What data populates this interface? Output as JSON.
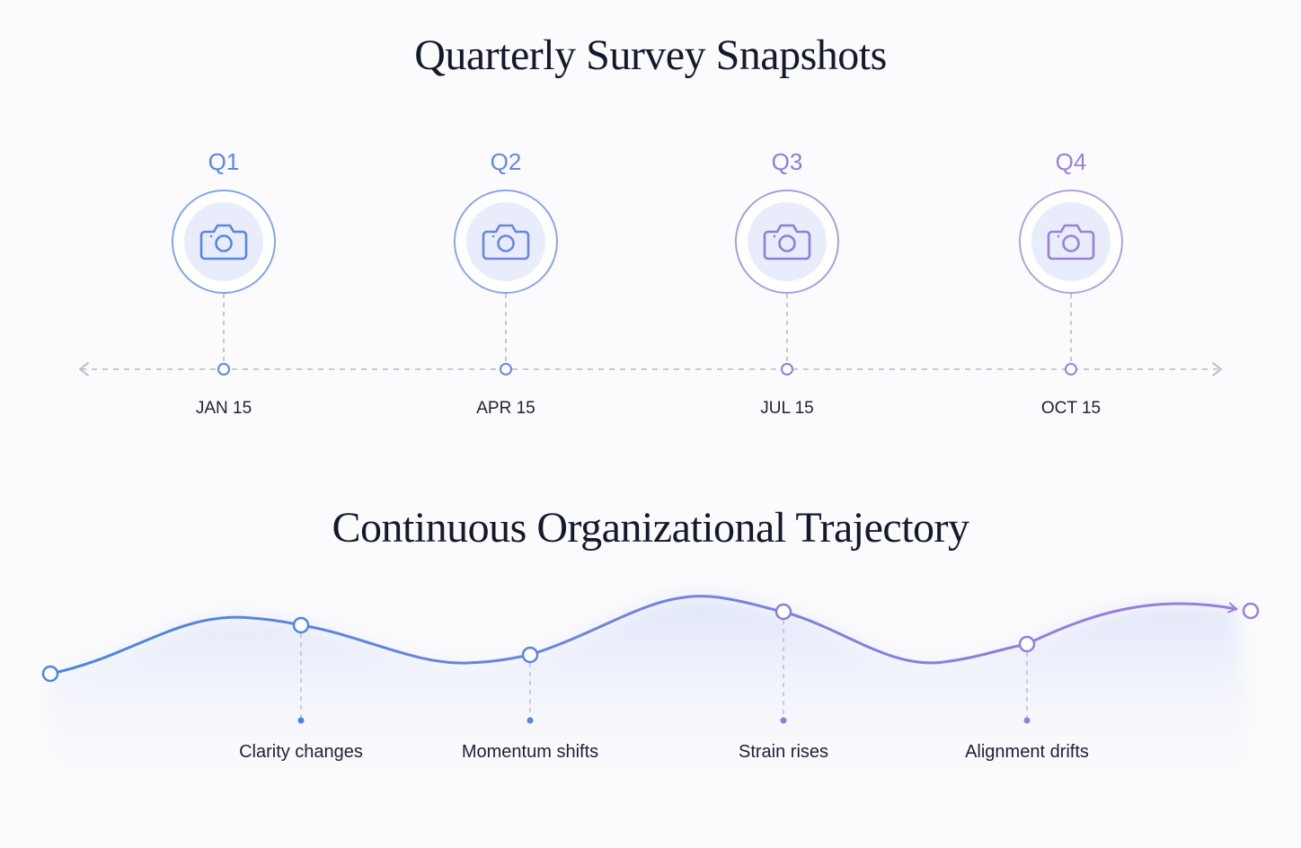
{
  "snapshot_section": {
    "title": "Quarterly Survey Snapshots",
    "quarters": [
      {
        "label": "Q1",
        "date": "JAN 15",
        "icon": "camera-icon",
        "color": "#5b86e0"
      },
      {
        "label": "Q2",
        "date": "APR 15",
        "icon": "camera-icon",
        "color": "#6a86e0"
      },
      {
        "label": "Q3",
        "date": "JUL 15",
        "icon": "camera-icon",
        "color": "#8a7fdc"
      },
      {
        "label": "Q4",
        "date": "OCT 15",
        "icon": "camera-icon",
        "color": "#9a80dc"
      }
    ]
  },
  "trajectory_section": {
    "title": "Continuous Organizational Trajectory",
    "markers": [
      {
        "label": "Clarity changes"
      },
      {
        "label": "Momentum shifts"
      },
      {
        "label": "Strain rises"
      },
      {
        "label": "Alignment drifts"
      }
    ],
    "gradient": {
      "start": "#4a86df",
      "end": "#9b7fdd"
    }
  }
}
